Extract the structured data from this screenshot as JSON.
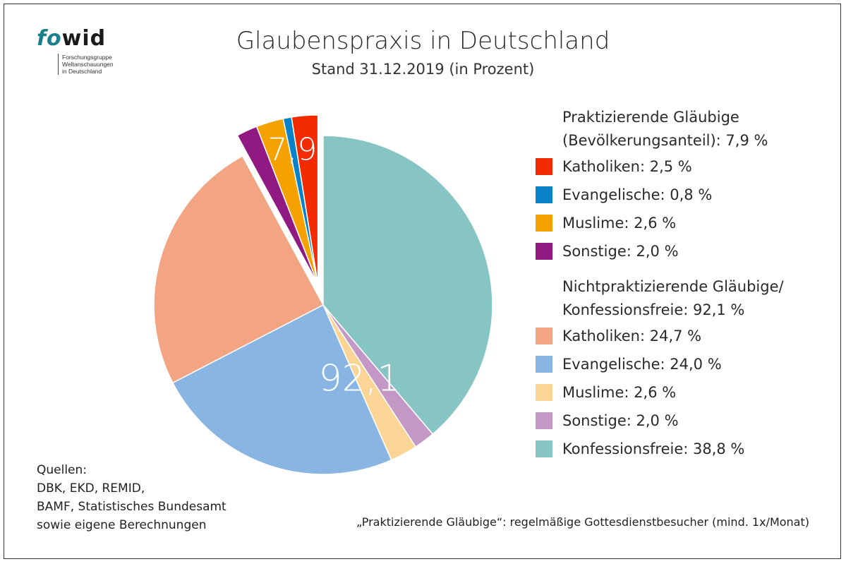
{
  "logo": {
    "word_fo": "fo",
    "word_wid": "wid",
    "subtitle_lines": [
      "Forschungsgruppe",
      "Weltanschauungen",
      "in Deutschland"
    ]
  },
  "header": {
    "title": "Glaubenspraxis in Deutschland",
    "subtitle": "Stand 31.12.2019 (in Prozent)"
  },
  "chart_data": {
    "type": "pie",
    "title": "Glaubenspraxis in Deutschland",
    "subtitle": "Stand 31.12.2019 (in Prozent)",
    "start_angle_deg": 0,
    "direction": "clockwise",
    "slices": [
      {
        "group": "nichtpraktizierend",
        "label": "Konfessionsfreie",
        "value": 38.8,
        "color": "#86c5c4"
      },
      {
        "group": "nichtpraktizierend",
        "label": "Sonstige",
        "value": 2.0,
        "color": "#c397c6"
      },
      {
        "group": "nichtpraktizierend",
        "label": "Muslime",
        "value": 2.6,
        "color": "#fbd596"
      },
      {
        "group": "nichtpraktizierend",
        "label": "Evangelische",
        "value": 24.0,
        "color": "#88b5e2"
      },
      {
        "group": "nichtpraktizierend",
        "label": "Katholiken",
        "value": 24.7,
        "color": "#f3a482"
      },
      {
        "group": "praktizierend",
        "label": "Sonstige",
        "value": 2.0,
        "color": "#901a82"
      },
      {
        "group": "praktizierend",
        "label": "Muslime",
        "value": 2.6,
        "color": "#f5a200"
      },
      {
        "group": "praktizierend",
        "label": "Evangelische",
        "value": 0.8,
        "color": "#0a82c9"
      },
      {
        "group": "praktizierend",
        "label": "Katholiken",
        "value": 2.5,
        "color": "#f22c00"
      }
    ],
    "exploded_group": "praktizierend",
    "group_labels": [
      {
        "group": "nichtpraktizierend",
        "text": "92,1",
        "value": 92.1
      },
      {
        "group": "praktizierend",
        "text": "7,9",
        "value": 7.9
      }
    ],
    "legend_position": "right"
  },
  "legend": {
    "groups": [
      {
        "title_lines": [
          "Praktizierende Gläubige",
          "(Bevölkerungsanteil):  7,9 %"
        ],
        "items": [
          {
            "label": "Katholiken:  2,5 %",
            "color": "#f22c00"
          },
          {
            "label": "Evangelische:  0,8 %",
            "color": "#0a82c9"
          },
          {
            "label": "Muslime:  2,6 %",
            "color": "#f5a200"
          },
          {
            "label": "Sonstige:  2,0 %",
            "color": "#901a82"
          }
        ]
      },
      {
        "title_lines": [
          "Nichtpraktizierende Gläubige/",
          "Konfessionsfreie:  92,1 %"
        ],
        "items": [
          {
            "label": "Katholiken:  24,7 %",
            "color": "#f3a482"
          },
          {
            "label": "Evangelische:  24,0 %",
            "color": "#88b5e2"
          },
          {
            "label": "Muslime:  2,6 %",
            "color": "#fbd596"
          },
          {
            "label": "Sonstige:  2,0 %",
            "color": "#c397c6"
          },
          {
            "label": "Konfessionsfreie:  38,8 %",
            "color": "#86c5c4"
          }
        ]
      }
    ]
  },
  "sources": {
    "lines": [
      "Quellen:",
      "DBK, EKD, REMID,",
      "BAMF, Statistisches Bundesamt",
      "sowie eigene Berechnungen"
    ]
  },
  "footnote": "„Praktizierende Gläubige“: regelmäßige Gottesdienstbesucher (mind. 1x/Monat)"
}
